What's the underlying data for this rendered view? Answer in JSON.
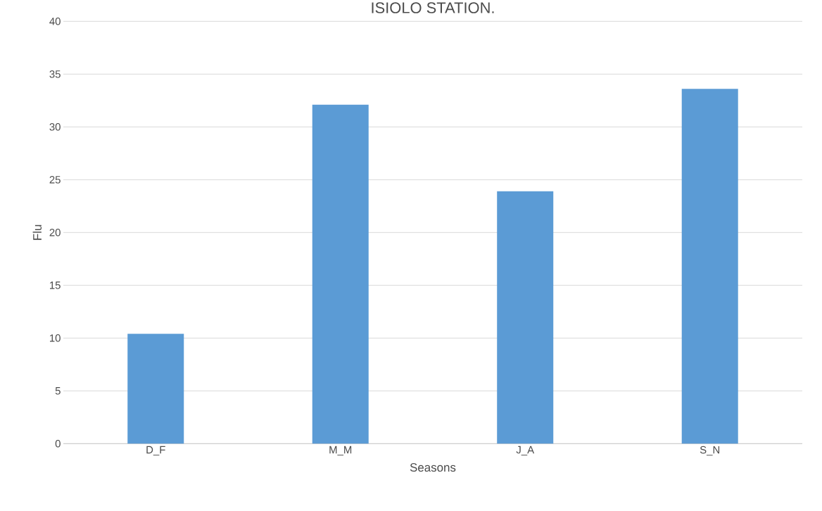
{
  "chart_data": {
    "type": "bar",
    "title": "ISIOLO STATION.",
    "xlabel": "Seasons",
    "ylabel": "Flu",
    "categories": [
      "D_F",
      "M_M",
      "J_A",
      "S_N"
    ],
    "values": [
      10.4,
      32.1,
      23.9,
      33.6
    ],
    "color": "#5b9bd5",
    "ylim": [
      0,
      40
    ],
    "yticks": [
      0,
      5,
      10,
      15,
      20,
      25,
      30,
      35,
      40
    ],
    "grid": "y"
  }
}
